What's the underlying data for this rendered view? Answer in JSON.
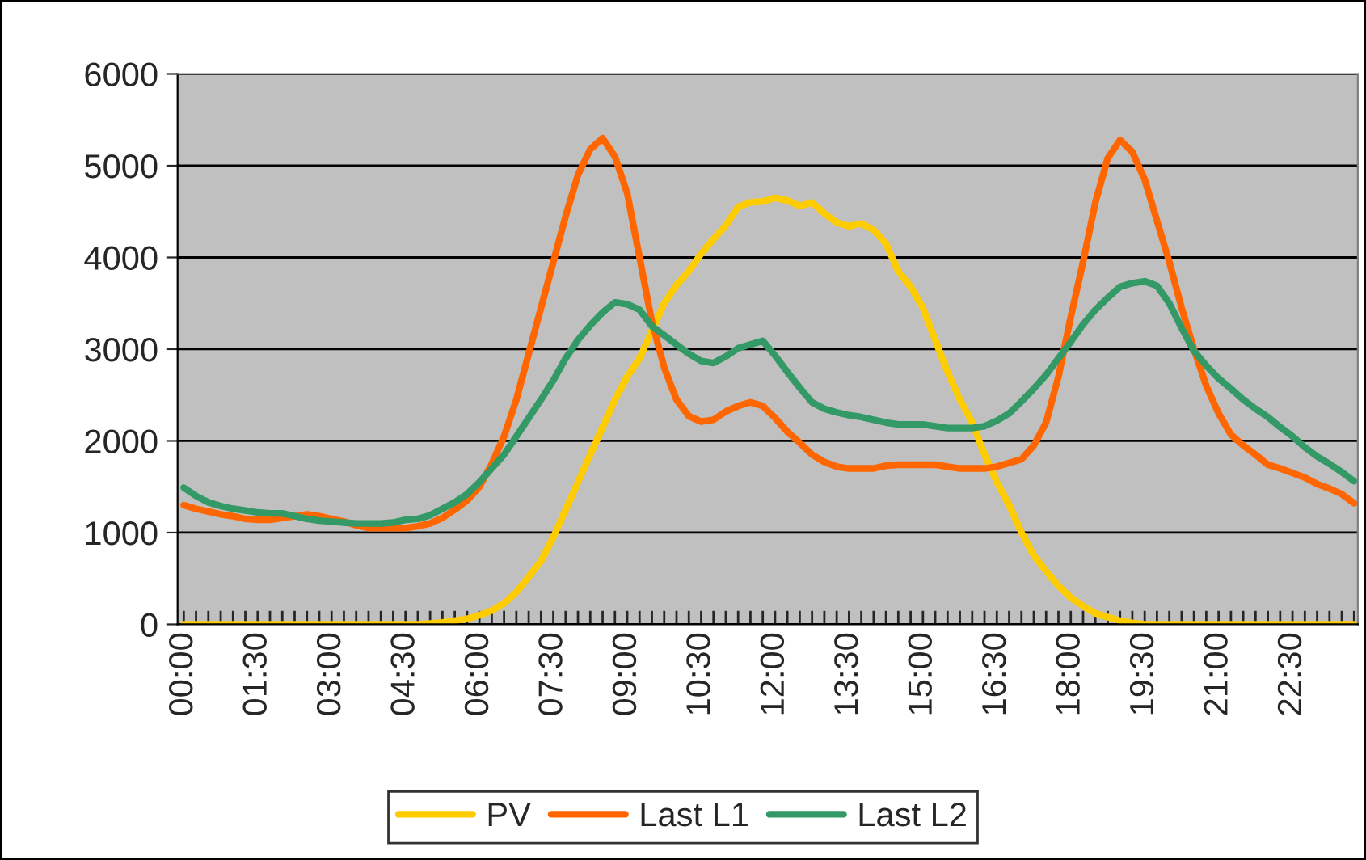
{
  "chart_data": {
    "type": "line",
    "categories": [
      "00:00",
      null,
      null,
      null,
      null,
      null,
      "01:30",
      null,
      null,
      null,
      null,
      null,
      "03:00",
      null,
      null,
      null,
      null,
      null,
      "04:30",
      null,
      null,
      null,
      null,
      null,
      "06:00",
      null,
      null,
      null,
      null,
      null,
      "07:30",
      null,
      null,
      null,
      null,
      null,
      "09:00",
      null,
      null,
      null,
      null,
      null,
      "10:30",
      null,
      null,
      null,
      null,
      null,
      "12:00",
      null,
      null,
      null,
      null,
      null,
      "13:30",
      null,
      null,
      null,
      null,
      null,
      "15:00",
      null,
      null,
      null,
      null,
      null,
      "16:30",
      null,
      null,
      null,
      null,
      null,
      "18:00",
      null,
      null,
      null,
      null,
      null,
      "19:30",
      null,
      null,
      null,
      null,
      null,
      "21:00",
      null,
      null,
      null,
      null,
      null,
      "22:30",
      null,
      null,
      null,
      null,
      null
    ],
    "series": [
      {
        "name": "PV",
        "color": "#ffcc00",
        "values": [
          0,
          0,
          0,
          0,
          0,
          0,
          0,
          0,
          0,
          0,
          0,
          0,
          0,
          0,
          0,
          0,
          0,
          0,
          0,
          0,
          10,
          20,
          40,
          60,
          100,
          150,
          230,
          350,
          520,
          690,
          950,
          1250,
          1550,
          1850,
          2150,
          2450,
          2700,
          2900,
          3200,
          3500,
          3700,
          3850,
          4040,
          4200,
          4350,
          4550,
          4600,
          4610,
          4650,
          4620,
          4560,
          4600,
          4480,
          4380,
          4340,
          4370,
          4300,
          4150,
          3850,
          3680,
          3450,
          3100,
          2750,
          2450,
          2200,
          1850,
          1550,
          1300,
          1000,
          750,
          580,
          420,
          290,
          200,
          120,
          80,
          40,
          15,
          0,
          0,
          0,
          0,
          0,
          0,
          0,
          0,
          0,
          0,
          0,
          0,
          0,
          0,
          0,
          0,
          0,
          0
        ]
      },
      {
        "name": "Last L1",
        "color": "#ff6600",
        "values": [
          1300,
          1260,
          1230,
          1200,
          1180,
          1150,
          1140,
          1140,
          1160,
          1180,
          1200,
          1180,
          1150,
          1120,
          1080,
          1050,
          1050,
          1050,
          1050,
          1070,
          1100,
          1160,
          1250,
          1350,
          1500,
          1750,
          2050,
          2450,
          2950,
          3450,
          3950,
          4450,
          4900,
          5180,
          5300,
          5100,
          4700,
          4000,
          3300,
          2800,
          2450,
          2270,
          2210,
          2230,
          2320,
          2380,
          2420,
          2380,
          2250,
          2100,
          1980,
          1850,
          1770,
          1720,
          1700,
          1700,
          1700,
          1730,
          1740,
          1740,
          1740,
          1740,
          1720,
          1700,
          1700,
          1700,
          1720,
          1760,
          1800,
          1950,
          2200,
          2700,
          3350,
          3950,
          4600,
          5080,
          5280,
          5150,
          4850,
          4400,
          3950,
          3450,
          3000,
          2600,
          2300,
          2070,
          1950,
          1850,
          1740,
          1700,
          1650,
          1600,
          1530,
          1480,
          1420,
          1320
        ]
      },
      {
        "name": "Last L2",
        "color": "#339966",
        "values": [
          1490,
          1400,
          1330,
          1290,
          1260,
          1240,
          1220,
          1210,
          1210,
          1180,
          1150,
          1130,
          1120,
          1110,
          1100,
          1100,
          1100,
          1110,
          1140,
          1150,
          1190,
          1260,
          1330,
          1420,
          1550,
          1700,
          1850,
          2050,
          2250,
          2450,
          2660,
          2900,
          3100,
          3260,
          3400,
          3510,
          3490,
          3430,
          3250,
          3150,
          3050,
          2950,
          2870,
          2850,
          2920,
          3010,
          3050,
          3090,
          2930,
          2750,
          2580,
          2420,
          2350,
          2310,
          2280,
          2260,
          2230,
          2200,
          2180,
          2180,
          2180,
          2160,
          2140,
          2140,
          2140,
          2160,
          2220,
          2300,
          2430,
          2570,
          2720,
          2900,
          3080,
          3270,
          3430,
          3560,
          3680,
          3720,
          3740,
          3690,
          3500,
          3230,
          2980,
          2820,
          2680,
          2570,
          2450,
          2350,
          2260,
          2150,
          2050,
          1930,
          1830,
          1750,
          1660,
          1560
        ]
      }
    ],
    "ylim": [
      0,
      6000
    ],
    "yticks": [
      0,
      1000,
      2000,
      3000,
      4000,
      5000,
      6000
    ],
    "grid": "y",
    "legend": "bottom",
    "marker": "none",
    "line_style": "solid"
  }
}
